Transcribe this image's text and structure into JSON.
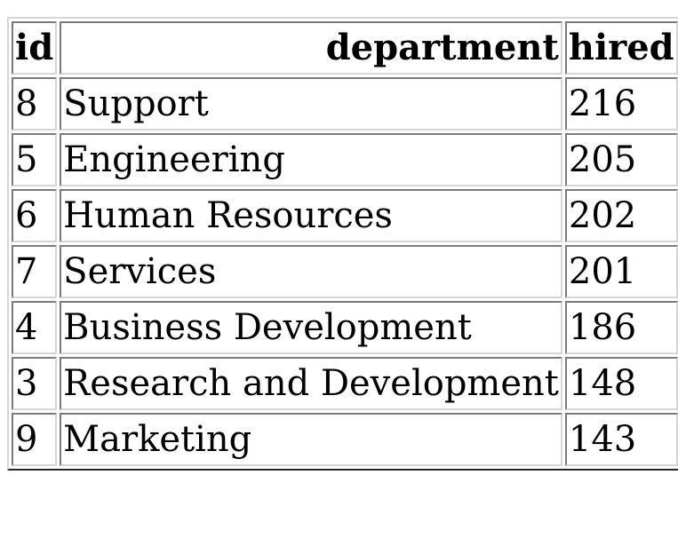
{
  "table": {
    "headers": {
      "id": "id",
      "department": "department",
      "hired": "hired"
    },
    "rows": [
      {
        "id": "8",
        "department": "Support",
        "hired": "216"
      },
      {
        "id": "5",
        "department": "Engineering",
        "hired": "205"
      },
      {
        "id": "6",
        "department": "Human Resources",
        "hired": "202"
      },
      {
        "id": "7",
        "department": "Services",
        "hired": "201"
      },
      {
        "id": "4",
        "department": "Business Development",
        "hired": "186"
      },
      {
        "id": "3",
        "department": "Research and Development",
        "hired": "148"
      },
      {
        "id": "9",
        "department": "Marketing",
        "hired": "143"
      }
    ]
  }
}
